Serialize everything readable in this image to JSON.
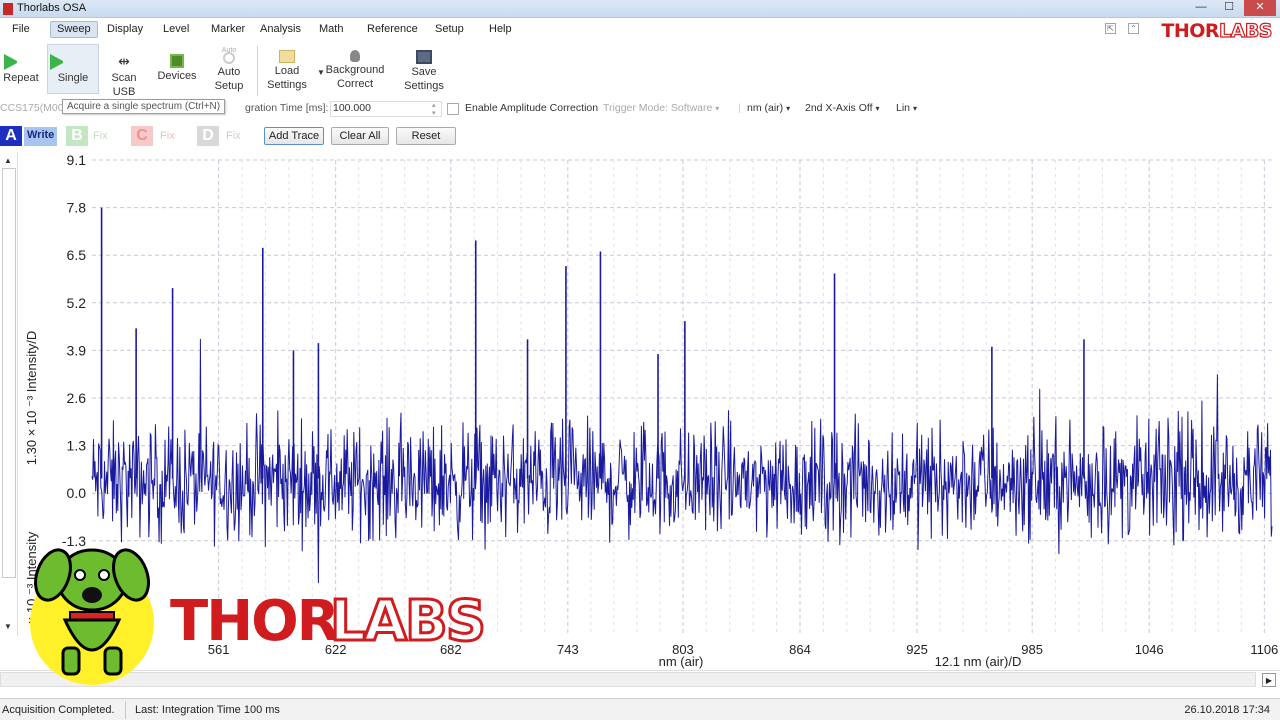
{
  "window": {
    "title": "Thorlabs OSA"
  },
  "menu": {
    "items": [
      "File",
      "Sweep",
      "Display",
      "Level",
      "Marker",
      "Analysis",
      "Math",
      "Reference",
      "Setup",
      "Help"
    ],
    "active": "Sweep"
  },
  "brand": {
    "thor": "THOR",
    "labs": "LABS",
    "color": "#d01c1f"
  },
  "toolbar": {
    "repeat": "Repeat",
    "single": "Single",
    "scan_usb": "Scan USB",
    "devices": "Devices",
    "auto_small": "Auto",
    "auto_setup_1": "Auto",
    "auto_setup_2": "Setup",
    "load_1": "Load",
    "load_2": "Settings",
    "bg_1": "Background",
    "bg_2": "Correct",
    "save_1": "Save",
    "save_2": "Settings"
  },
  "tooltip": "Acquire a single spectrum (Ctrl+N)",
  "settings": {
    "device": "CCS175(M00",
    "integration_label": "gration Time [ms]:",
    "integration_value": "100.000",
    "amplitude_correction": "Enable Amplitude Correction",
    "trigger_mode": "Trigger Mode: Software",
    "unit": "nm (air)",
    "second_axis": "2nd X-Axis Off",
    "scale": "Lin"
  },
  "traces": {
    "a": {
      "letter": "A",
      "mode": "Write",
      "color": "#1d2fbf"
    },
    "b": {
      "letter": "B",
      "mode": "Fix",
      "color": "#a6d4a2"
    },
    "c": {
      "letter": "C",
      "mode": "Fix",
      "color": "#f0a0a0"
    },
    "d": {
      "letter": "D",
      "mode": "Fix",
      "color": "#b7b7b7"
    },
    "add_trace": "Add Trace",
    "clear_all": "Clear All",
    "reset": "Reset"
  },
  "chart_data": {
    "type": "line",
    "series_color": "#1a1a9e",
    "y_ticks": [
      "9.1",
      "7.8",
      "6.5",
      "5.2",
      "3.9",
      "2.6",
      "1.3",
      "0.0",
      "-1.3"
    ],
    "x_ticks": [
      "561",
      "622",
      "682",
      "743",
      "803",
      "864",
      "925",
      "985",
      "1046",
      "1106"
    ],
    "xlabel": "nm (air)",
    "x_div_label": "12.1 nm (air)/D",
    "ylabel_left": "× 10 ⁻³ Intensity",
    "ylabel_div": "1.30 × 10 ⁻³ Intensity/D",
    "ylim": [
      -3.9,
      9.1
    ],
    "xlim": [
      495,
      1110
    ],
    "grid": true,
    "noise_range": [
      -1.3,
      2.0
    ],
    "spikes": [
      {
        "x": 500,
        "y": 7.8
      },
      {
        "x": 518,
        "y": 4.5
      },
      {
        "x": 537,
        "y": 5.6
      },
      {
        "x": 584,
        "y": 6.7
      },
      {
        "x": 600,
        "y": 3.9
      },
      {
        "x": 613,
        "y": 4.1
      },
      {
        "x": 695,
        "y": 6.9
      },
      {
        "x": 722,
        "y": 4.2
      },
      {
        "x": 742,
        "y": 6.2
      },
      {
        "x": 760,
        "y": 6.6
      },
      {
        "x": 790,
        "y": 3.8
      },
      {
        "x": 804,
        "y": 4.7
      },
      {
        "x": 882,
        "y": 6.0
      },
      {
        "x": 964,
        "y": 4.0
      },
      {
        "x": 1012,
        "y": 4.2
      }
    ]
  },
  "status": {
    "left": "Acquisition Completed.",
    "middle": "Last: Integration Time 100 ms",
    "right": "26.10.2018 17:34"
  },
  "watermark": {
    "text_thor": "THOR",
    "text_labs": "LABS"
  }
}
